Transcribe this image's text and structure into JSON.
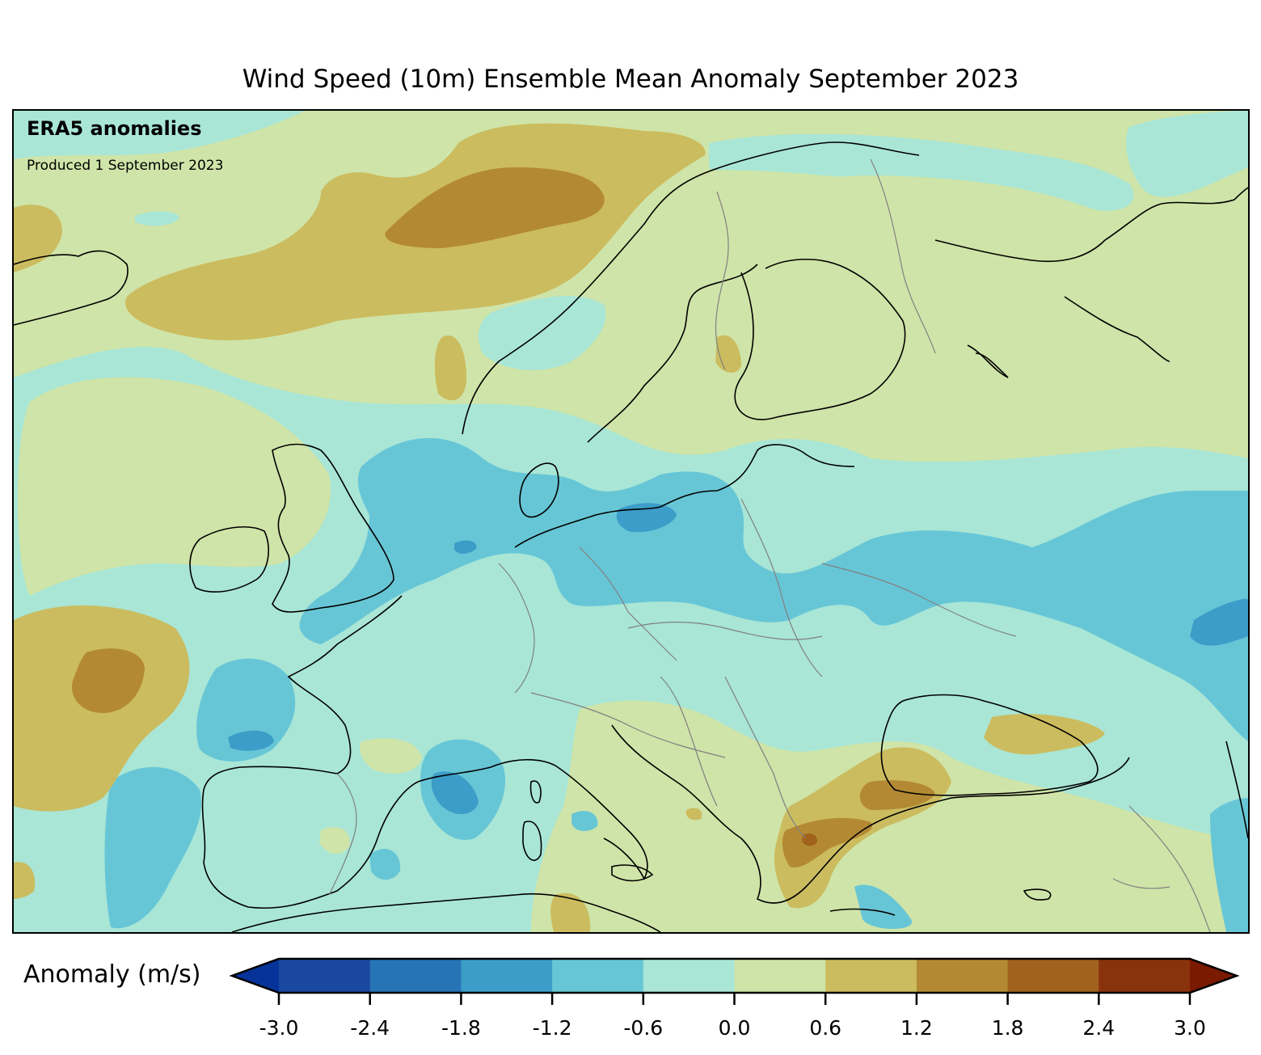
{
  "title": "Wind Speed (10m) Ensemble Mean Anomaly September 2023",
  "map": {
    "source_label": "ERA5 anomalies",
    "produced_label": "Produced 1 September 2023",
    "region": "Europe",
    "variable": "10m wind speed anomaly",
    "features": [
      "coastlines",
      "country-borders",
      "filled-contours"
    ]
  },
  "colorbar": {
    "label": "Anomaly (m/s)",
    "ticks": [
      "-3.0",
      "-2.4",
      "-1.8",
      "-1.2",
      "-0.6",
      "0.0",
      "0.6",
      "1.2",
      "1.8",
      "2.4",
      "3.0"
    ],
    "tick_values": [
      -3.0,
      -2.4,
      -1.8,
      -1.2,
      -0.6,
      0.0,
      0.6,
      1.2,
      1.8,
      2.4,
      3.0
    ],
    "extend": "both",
    "under_color": "#063399",
    "over_color": "#7a1a00",
    "bins": [
      {
        "range": [
          -3.0,
          -2.4
        ],
        "color": "#1a47a0"
      },
      {
        "range": [
          -2.4,
          -1.8
        ],
        "color": "#2674b5"
      },
      {
        "range": [
          -1.8,
          -1.2
        ],
        "color": "#3c9dc8"
      },
      {
        "range": [
          -1.2,
          -0.6
        ],
        "color": "#67c6d6"
      },
      {
        "range": [
          -0.6,
          0.0
        ],
        "color": "#a9e6d6"
      },
      {
        "range": [
          0.0,
          0.6
        ],
        "color": "#cfe4a8"
      },
      {
        "range": [
          0.6,
          1.2
        ],
        "color": "#cbbc5f"
      },
      {
        "range": [
          1.2,
          1.8
        ],
        "color": "#b38a33"
      },
      {
        "range": [
          1.8,
          2.4
        ],
        "color": "#a1621e"
      },
      {
        "range": [
          2.4,
          3.0
        ],
        "color": "#89330c"
      }
    ]
  }
}
